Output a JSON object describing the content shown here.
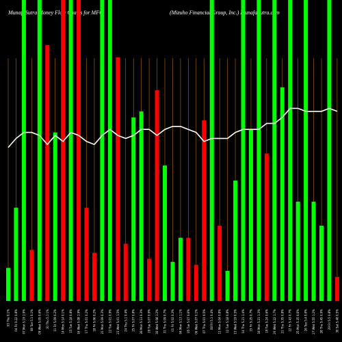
{
  "header": {
    "left": "MunafaSutra  Money Flow Charts for MFG",
    "right": "(Mizuho  Financial Group, Inc.) MunafaSutra.com"
  },
  "colors": {
    "background": "#000000",
    "up": "#00ff00",
    "down": "#ff0000",
    "grid": "#b26b00",
    "line": "#ffffff"
  },
  "chart_data": {
    "type": "bar",
    "title": "MunafaSutra  Money Flow Charts for MFG",
    "subtitle": "(Mizuho  Financial Group, Inc.) MunafaSutra.com",
    "ylim": [
      0,
      1
    ],
    "categories": [
      "03 Thu 0.1%",
      "04 Fri 0.22 0.8%",
      "07 Mon 5.19 1.9%",
      "08 Tue 5.1 0.1%",
      "09 Wed 5.05 0.6%",
      "10 Thu 5.1 1%",
      "11 Fri 5.09 0.2%",
      "14 Mon 5.14 0.1%",
      "15 Tue 5.18 0.8%",
      "16 Wed 5.08 1.9%",
      "17 Thu 5.01 0.2%",
      "18 Fri 5.06 0.2%",
      "21 Mon 5.09 0.3%",
      "22 Tue 5.01 0.9%",
      "23 Wed 5.01 1.5%",
      "24 Thu 5.1 0.4%",
      "25 Fri 5.07 0.8%",
      "28 Mon 5.13 0.3%",
      "29 Tue 5.07 0.9%",
      "30 Wed 5.08 1.2%",
      "31 Thu 5.09 0.7%",
      "01 Fri 5.02 0.3%",
      "04 Mon 5.13 1.1%",
      "05 Tue 5.07 0.6%",
      "06 Wed 5.07 0.1%",
      "07 Thu 5.01 0.5%",
      "08 Fri 5.1 0.4%",
      "11 Mon 5.04 0.8%",
      "12 Tue 5.18 0.8%",
      "13 Wed 5.19 0.5%",
      "14 Thu 5.21 1.4%",
      "15 Fri 5.25 0.7%",
      "18 Mon 5.21 1.3%",
      "19 Tue 5.24 0.6%",
      "20 Wed 5.22 1.7%",
      "21 Thu 5.35 0.8%",
      "22 Fri 5.43 0.7%",
      "25 Mon 5.35 0.6%",
      "26 Tue 5.4 0.6%",
      "27 Wed 5.55 1.2%",
      "28 Thu 5.45 0.9%",
      "29 Fri 5.5 0.8%",
      "30 Sat 5.48 0.5%"
    ],
    "series": [
      {
        "values": [
          0.11,
          0.31,
          1.0,
          0.17,
          1.0,
          0.85,
          0.56,
          1.0,
          1.0,
          1.0,
          0.31,
          0.16,
          1.0,
          1.0,
          0.81,
          0.19,
          0.61,
          0.63,
          0.14,
          0.7,
          0.45,
          0.13,
          0.21,
          0.21,
          0.12,
          0.6,
          1.0,
          0.25,
          0.1,
          0.4,
          1.0,
          0.57,
          1.0,
          0.49,
          1.0,
          0.71,
          1.0,
          0.33,
          1.0,
          0.33,
          0.25,
          1.0,
          0.08
        ],
        "directions": [
          "up",
          "up",
          "up",
          "down",
          "up",
          "down",
          "up",
          "down",
          "up",
          "down",
          "down",
          "down",
          "up",
          "up",
          "down",
          "down",
          "up",
          "up",
          "down",
          "down",
          "up",
          "up",
          "up",
          "down",
          "down",
          "down",
          "up",
          "down",
          "up",
          "up",
          "up",
          "up",
          "up",
          "down",
          "up",
          "up",
          "up",
          "up",
          "up",
          "up",
          "up",
          "up",
          "down"
        ]
      },
      {
        "values": [
          0.51,
          0.54,
          0.56,
          0.56,
          0.55,
          0.52,
          0.55,
          0.53,
          0.56,
          0.55,
          0.53,
          0.52,
          0.55,
          0.57,
          0.55,
          0.54,
          0.55,
          0.57,
          0.57,
          0.55,
          0.57,
          0.58,
          0.58,
          0.57,
          0.56,
          0.53,
          0.54,
          0.54,
          0.54,
          0.56,
          0.57,
          0.57,
          0.57,
          0.59,
          0.59,
          0.61,
          0.64,
          0.64,
          0.63,
          0.63,
          0.63,
          0.64,
          0.63
        ]
      }
    ]
  }
}
